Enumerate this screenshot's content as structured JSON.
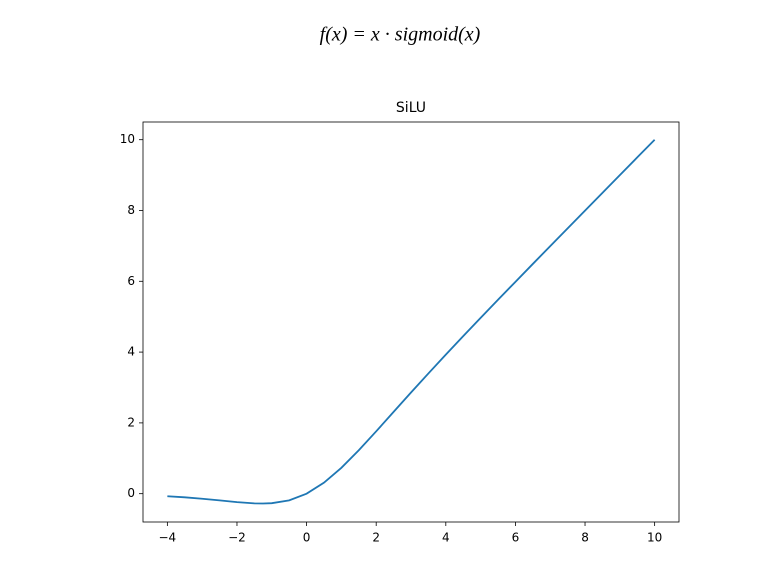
{
  "formula": "f(x) = x · sigmoid(x)",
  "chart_data": {
    "type": "line",
    "title": "SiLU",
    "x": [
      -4,
      -3.5,
      -3,
      -2.5,
      -2,
      -1.5,
      -1.25,
      -1,
      -0.5,
      0,
      0.5,
      1,
      1.5,
      2,
      2.5,
      3,
      3.5,
      4,
      4.5,
      5,
      5.5,
      6,
      6.5,
      7,
      7.5,
      8,
      8.5,
      9,
      9.5,
      10
    ],
    "values": [
      -0.0719,
      -0.1026,
      -0.1423,
      -0.1897,
      -0.2384,
      -0.2736,
      -0.2784,
      -0.2689,
      -0.1888,
      0,
      0.3112,
      0.7311,
      1.2263,
      1.7616,
      2.3104,
      2.8577,
      3.3974,
      3.9281,
      4.4505,
      4.9665,
      5.4776,
      5.9852,
      6.4902,
      6.9936,
      7.4959,
      7.9973,
      8.4983,
      8.9989,
      9.4993,
      9.9995
    ],
    "color": "#1f77b4",
    "xlim": [
      -4.7,
      10.7
    ],
    "ylim": [
      -0.8,
      10.5
    ],
    "xticks": [
      {
        "value": -4,
        "label": "−4"
      },
      {
        "value": -2,
        "label": "−2"
      },
      0,
      2,
      4,
      6,
      8,
      10
    ],
    "yticks": [
      0,
      2,
      4,
      6,
      8,
      10
    ]
  }
}
